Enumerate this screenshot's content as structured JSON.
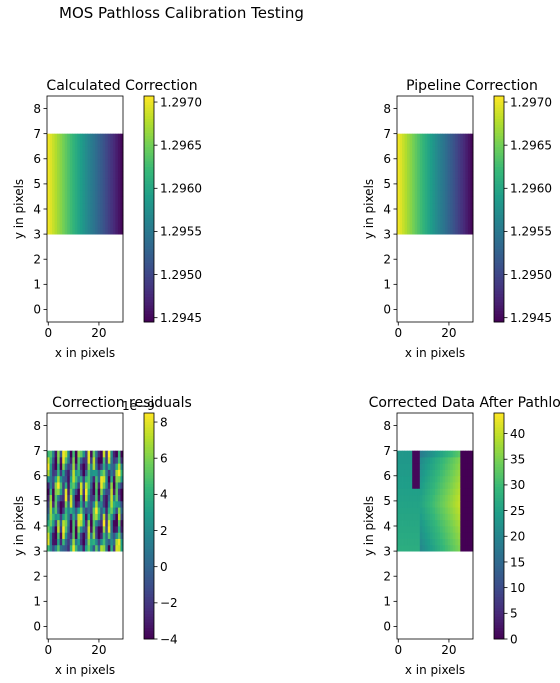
{
  "figure": {
    "title": "MOS Pathloss Calibration Testing"
  },
  "chart_data": [
    {
      "type": "heatmap",
      "title": "Calculated Correction",
      "xlabel": "x in pixels",
      "ylabel": "y in pixels",
      "xlim": [
        -0.5,
        29.5
      ],
      "ylim": [
        -0.5,
        8.5
      ],
      "x_ticks": [
        "0",
        "20"
      ],
      "y_ticks": [
        "0",
        "1",
        "2",
        "3",
        "4",
        "5",
        "6",
        "7",
        "8"
      ],
      "data_extent": {
        "x": [
          -0.5,
          29.5
        ],
        "y": [
          3,
          7
        ]
      },
      "pattern": "horizontal_gradient",
      "colormap": "viridis",
      "colorbar": {
        "min": 1.29445,
        "max": 1.29707,
        "ticks": [
          "1.2945",
          "1.2950",
          "1.2955",
          "1.2960",
          "1.2965",
          "1.2970"
        ],
        "tick_values": [
          1.2945,
          1.295,
          1.2955,
          1.296,
          1.2965,
          1.297
        ],
        "offset_label": ""
      }
    },
    {
      "type": "heatmap",
      "title": "Pipeline Correction",
      "xlabel": "x in pixels",
      "ylabel": "y in pixels",
      "xlim": [
        -0.5,
        29.5
      ],
      "ylim": [
        -0.5,
        8.5
      ],
      "x_ticks": [
        "0",
        "20"
      ],
      "y_ticks": [
        "0",
        "1",
        "2",
        "3",
        "4",
        "5",
        "6",
        "7",
        "8"
      ],
      "data_extent": {
        "x": [
          -0.5,
          29.5
        ],
        "y": [
          3,
          7
        ]
      },
      "pattern": "horizontal_gradient",
      "colormap": "viridis",
      "colorbar": {
        "min": 1.29445,
        "max": 1.29707,
        "ticks": [
          "1.2945",
          "1.2950",
          "1.2955",
          "1.2960",
          "1.2965",
          "1.2970"
        ],
        "tick_values": [
          1.2945,
          1.295,
          1.2955,
          1.296,
          1.2965,
          1.297
        ],
        "offset_label": ""
      }
    },
    {
      "type": "heatmap",
      "title": "Correction residuals",
      "xlabel": "x in pixels",
      "ylabel": "y in pixels",
      "xlim": [
        -0.5,
        29.5
      ],
      "ylim": [
        -0.5,
        8.5
      ],
      "x_ticks": [
        "0",
        "20"
      ],
      "y_ticks": [
        "0",
        "1",
        "2",
        "3",
        "4",
        "5",
        "6",
        "7",
        "8"
      ],
      "data_extent": {
        "x": [
          -0.5,
          29.5
        ],
        "y": [
          3,
          7
        ]
      },
      "pattern": "residual_noise",
      "colormap": "viridis",
      "colorbar": {
        "min": -4,
        "max": 8.5,
        "ticks": [
          "−4",
          "−2",
          "0",
          "2",
          "4",
          "6",
          "8"
        ],
        "tick_values": [
          -4,
          -2,
          0,
          2,
          4,
          6,
          8
        ],
        "offset_label": "1e−9"
      }
    },
    {
      "type": "heatmap",
      "title": "Corrected Data After Pathloss",
      "xlabel": "x in pixels",
      "ylabel": "y in pixels",
      "xlim": [
        -0.5,
        29.5
      ],
      "ylim": [
        -0.5,
        8.5
      ],
      "x_ticks": [
        "0",
        "20"
      ],
      "y_ticks": [
        "0",
        "1",
        "2",
        "3",
        "4",
        "5",
        "6",
        "7",
        "8"
      ],
      "data_extent": {
        "x": [
          -0.5,
          29.5
        ],
        "y": [
          3,
          7
        ]
      },
      "pattern": "corrected_data",
      "colormap": "viridis",
      "colorbar": {
        "min": 0,
        "max": 44,
        "ticks": [
          "0",
          "5",
          "10",
          "15",
          "20",
          "25",
          "30",
          "35",
          "40"
        ],
        "tick_values": [
          0,
          5,
          10,
          15,
          20,
          25,
          30,
          35,
          40
        ],
        "offset_label": ""
      }
    }
  ]
}
